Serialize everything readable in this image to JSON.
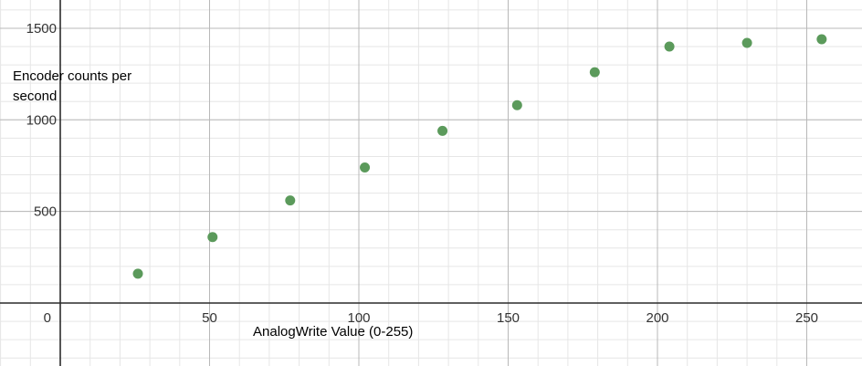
{
  "chart_data": {
    "type": "scatter",
    "title": "",
    "xlabel": "AnalogWrite Value (0-255)",
    "ylabel_lines": [
      "Encoder counts per",
      "second"
    ],
    "xlim": [
      -20,
      255
    ],
    "ylim": [
      -340,
      1650
    ],
    "x_ticks": [
      0,
      50,
      100,
      150,
      200,
      250
    ],
    "y_ticks": [
      500,
      1000,
      1500
    ],
    "x_tick_labels": [
      "0",
      "50",
      "100",
      "150",
      "200",
      "250"
    ],
    "y_tick_labels": [
      "500",
      "1000",
      "1500"
    ],
    "x_minor_step": 10,
    "y_minor_step": 100,
    "grid": true,
    "series": [
      {
        "color": "#5b9a5b",
        "points": [
          {
            "x": 26,
            "y": 160
          },
          {
            "x": 51,
            "y": 360
          },
          {
            "x": 77,
            "y": 560
          },
          {
            "x": 102,
            "y": 740
          },
          {
            "x": 128,
            "y": 940
          },
          {
            "x": 153,
            "y": 1080
          },
          {
            "x": 179,
            "y": 1260
          },
          {
            "x": 204,
            "y": 1400
          },
          {
            "x": 230,
            "y": 1420
          },
          {
            "x": 255,
            "y": 1440
          }
        ]
      }
    ]
  }
}
